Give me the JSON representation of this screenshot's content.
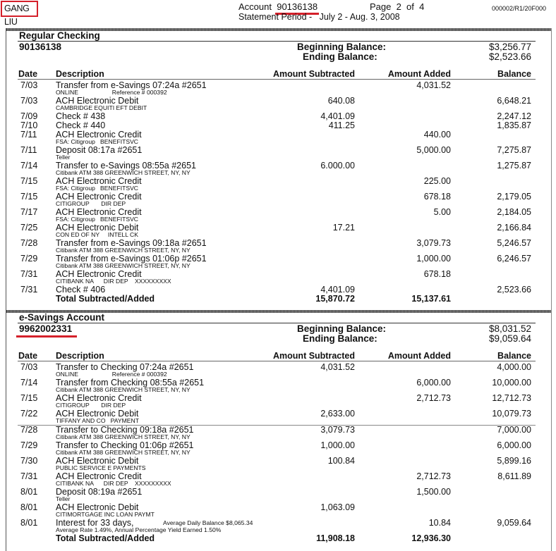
{
  "header": {
    "customer_name": "GANG LIU",
    "account_label": "Account",
    "account_number": "90136138",
    "page_label": "Page  2  of  4",
    "statement_period": "Statement Period -   July 2 - Aug. 3, 2008",
    "reference_code": "000002/R1/20F000"
  },
  "columns": {
    "date": "Date",
    "description": "Description",
    "subtracted": "Amount Subtracted",
    "added": "Amount Added",
    "balance": "Balance"
  },
  "accent_color": "#d4202a",
  "checking": {
    "title": "Regular Checking",
    "account_number": "90136138",
    "beginning_label": "Beginning Balance:",
    "ending_label": "Ending Balance:",
    "beginning_balance": "$3,256.77",
    "ending_balance": "$2,523.66",
    "rows": [
      {
        "date": "7/03",
        "desc": "Transfer from e-Savings 07:24a #2651",
        "sub": "ONLINE                    Reference # 000392",
        "sub_amt": "",
        "added": "4,031.52",
        "sub_amt2": "",
        "balance": ""
      },
      {
        "date": "7/03",
        "desc": "ACH Electronic Debit",
        "sub": "CAMBRIDGE EQUITI EFT DEBIT",
        "subtracted": "640.08",
        "balance": "6,648.21"
      },
      {
        "date": "7/09",
        "desc": "Check # 438",
        "subtracted": "4,401.09",
        "balance": "2,247.12",
        "short": true
      },
      {
        "date": "7/10",
        "desc": "Check # 440",
        "subtracted": "411.25",
        "balance": "1,835.87",
        "short": true
      },
      {
        "date": "7/11",
        "desc": "ACH Electronic Credit",
        "sub": "FSA: Citigroup   BENEFITSVC",
        "added": "440.00"
      },
      {
        "date": "7/11",
        "desc": "Deposit 08:17a #2651",
        "sub": "Teller",
        "added": "5,000.00",
        "balance": "7,275.87"
      },
      {
        "date": "7/14",
        "desc": "Transfer to e-Savings 08:55a #2651",
        "sub": "Citibank ATM 388 GREENWICH STREET, NY, NY",
        "subtracted": "6.000.00",
        "balance": "1,275.87"
      },
      {
        "date": "7/15",
        "desc": "ACH Electronic Credit",
        "sub": "FSA: Citigroup   BENEFITSVC",
        "added": "225.00"
      },
      {
        "date": "7/15",
        "desc": "ACH Electronic Credit",
        "sub": "CITIGROUP       DIR DEP",
        "added": "678.18",
        "balance": "2,179.05"
      },
      {
        "date": "7/17",
        "desc": "ACH Electronic Credit",
        "sub": "FSA: Citigroup   BENEFITSVC",
        "added": "5.00",
        "balance": "2,184.05"
      },
      {
        "date": "7/25",
        "desc": "ACH Electronic Debit",
        "sub": "CON ED OF NY     INTELL CK",
        "subtracted": "17.21",
        "balance": "2,166.84"
      },
      {
        "date": "7/28",
        "desc": "Transfer from e-Savings 09:18a #2651",
        "sub": "Citibank ATM 388 GREENWICH STREET, NY, NY",
        "added": "3,079.73",
        "balance": "5,246.57"
      },
      {
        "date": "7/29",
        "desc": "Transfer from e-Savings 01:06p #2651",
        "sub": "Citibank ATM 388 GREENWICH STREET, NY, NY",
        "added": "1,000.00",
        "balance": "6,246.57"
      },
      {
        "date": "7/31",
        "desc": "ACH Electronic Credit",
        "sub": "CITIBANK NA      DIR DEP    XXXXXXXXX",
        "added": "678.18"
      },
      {
        "date": "7/31",
        "desc": "Check # 406",
        "subtracted": "4,401.09",
        "balance": "2,523.66",
        "short": true
      }
    ],
    "total": {
      "label": "Total Subtracted/Added",
      "subtracted": "15,870.72",
      "added": "15,137.61"
    }
  },
  "savings": {
    "title": "e-Savings Account",
    "account_number": "9962002331",
    "beginning_label": "Beginning Balance:",
    "ending_label": "Ending Balance:",
    "beginning_balance": "$8,031.52",
    "ending_balance": "$9,059.64",
    "rows": [
      {
        "date": "7/03",
        "desc": "Transfer to Checking 07:24a #2651",
        "sub": "ONLINE                    Reference # 000392",
        "subtracted": "4,031.52",
        "balance": "4,000.00"
      },
      {
        "date": "7/14",
        "desc": "Transfer from Checking 08:55a #2651",
        "sub": "Citibank ATM 388 GREENWICH STREET, NY, NY",
        "added": "6,000.00",
        "balance": "10,000.00"
      },
      {
        "date": "7/15",
        "desc": "ACH Electronic Credit",
        "sub": "CITIGROUP       DIR DEP",
        "added": "2,712.73",
        "balance": "12,712.73"
      },
      {
        "date": "7/22",
        "desc": "ACH Electronic Debit",
        "sub": "TIFFANY AND CO   PAYMENT",
        "subtracted": "2,633.00",
        "balance": "10,079.73",
        "divider_after": true
      },
      {
        "date": "7/28",
        "desc": "Transfer to Checking 09:18a #2651",
        "sub": "Citibank ATM 388 GREENWICH STREET, NY, NY",
        "subtracted": "3,079.73",
        "balance": "7,000.00"
      },
      {
        "date": "7/29",
        "desc": "Transfer to Checking 01:06p #2651",
        "sub": "Citibank ATM 388 GREENWICH STREET, NY, NY",
        "subtracted": "1,000.00",
        "balance": "6,000.00"
      },
      {
        "date": "7/30",
        "desc": "ACH Electronic Debit",
        "sub": "PUBLIC SERVICE E PAYMENTS",
        "subtracted": "100.84",
        "balance": "5,899.16"
      },
      {
        "date": "7/31",
        "desc": "ACH Electronic Credit",
        "sub": "CITIBANK NA      DIR DEP    XXXXXXXXX",
        "added": "2,712.73",
        "balance": "8,611.89"
      },
      {
        "date": "8/01",
        "desc": "Deposit 08:19a #2651",
        "sub": "Teller",
        "added": "1,500.00"
      },
      {
        "date": "8/01",
        "desc": "ACH Electronic Debit",
        "sub": "CITIMORTGAGE INC LOAN PAYMT",
        "subtracted": "1,063.09"
      },
      {
        "date": "8/01",
        "desc": "Interest for 33 days,",
        "desc_note": "Average Daily Balance $8,065.34",
        "sub": "Average Rate 1.49%, Annual Percentage Yield Earned 1.50%",
        "added": "10.84",
        "balance": "9,059.64"
      }
    ],
    "total": {
      "label": "Total Subtracted/Added",
      "subtracted": "11,908.18",
      "added": "12,936.30"
    }
  }
}
